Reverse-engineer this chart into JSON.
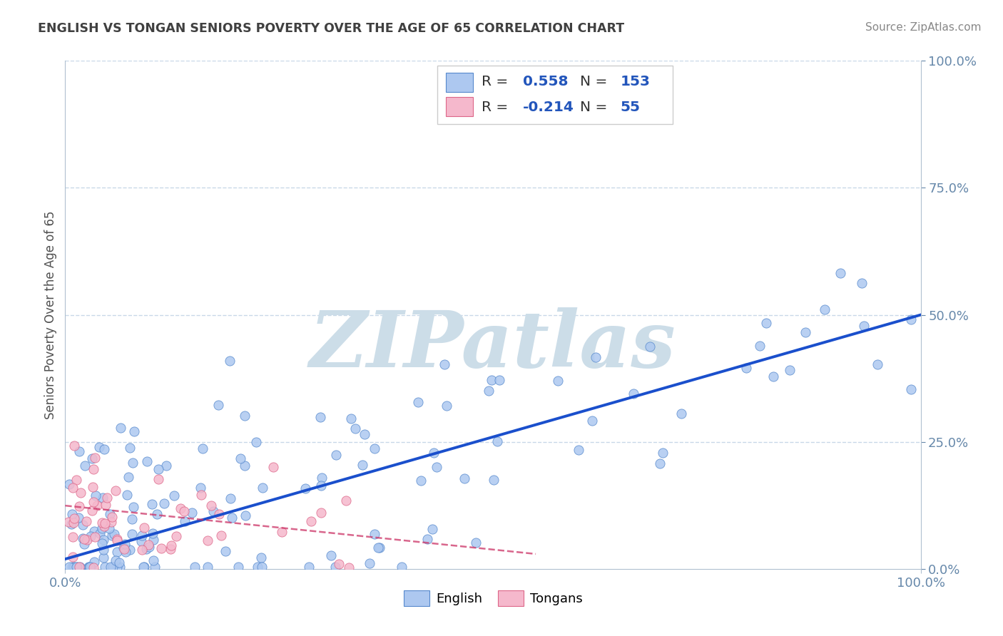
{
  "title": "ENGLISH VS TONGAN SENIORS POVERTY OVER THE AGE OF 65 CORRELATION CHART",
  "source": "Source: ZipAtlas.com",
  "ylabel": "Seniors Poverty Over the Age of 65",
  "xlim": [
    0,
    1
  ],
  "ylim": [
    0,
    1
  ],
  "xtick_labels": [
    "0.0%",
    "100.0%"
  ],
  "ytick_labels_right": [
    "0.0%",
    "25.0%",
    "50.0%",
    "75.0%",
    "100.0%"
  ],
  "ytick_positions_right": [
    0.0,
    0.25,
    0.5,
    0.75,
    1.0
  ],
  "english_R": 0.558,
  "english_N": 153,
  "tongan_R": -0.214,
  "tongan_N": 55,
  "english_color": "#adc8f0",
  "english_edge_color": "#5588cc",
  "english_line_color": "#1a4fcc",
  "tongan_color": "#f5b8cc",
  "tongan_edge_color": "#dd6688",
  "tongan_line_color": "#cc3366",
  "watermark": "ZIPatlas",
  "watermark_color": "#ccdde8",
  "background_color": "#ffffff",
  "grid_color": "#c8d8e8",
  "title_color": "#404040",
  "legend_text_color": "#333333",
  "legend_value_color": "#2255bb",
  "axis_color": "#6688aa"
}
